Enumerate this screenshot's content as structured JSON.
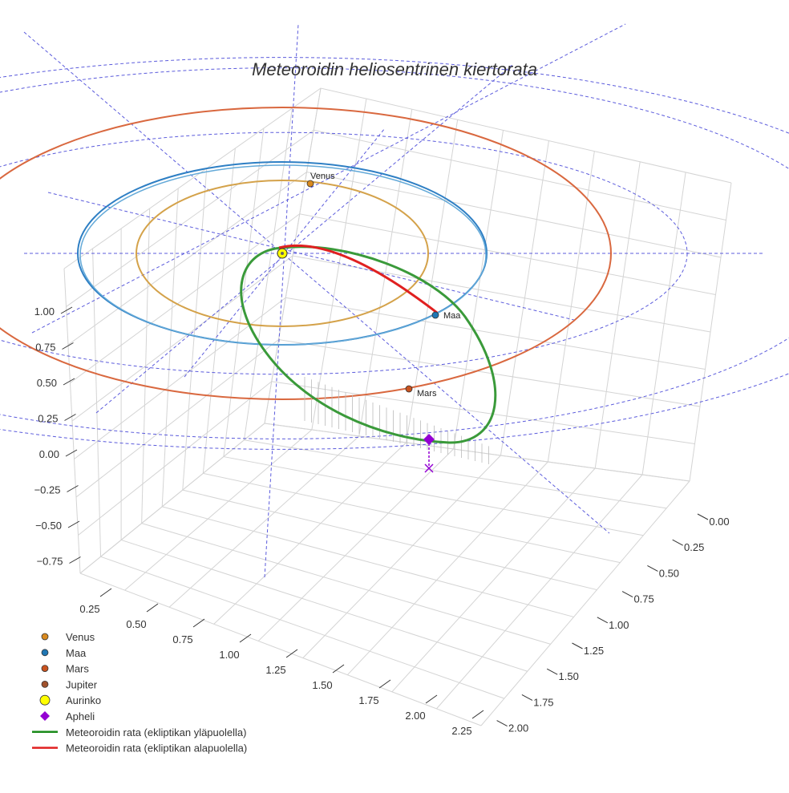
{
  "chart_data": {
    "type": "scatter",
    "title": "Meteoroidin heliosentrinen kiertorata",
    "projection": "3d",
    "axes": {
      "x": {
        "ticks": [
          "0.25",
          "0.50",
          "0.75",
          "1.00",
          "1.25",
          "1.50",
          "1.75",
          "2.00",
          "2.25"
        ],
        "label": ""
      },
      "y": {
        "ticks": [
          "0.00",
          "0.25",
          "0.50",
          "0.75",
          "1.00",
          "1.25",
          "1.50",
          "1.75",
          "2.00"
        ],
        "label": ""
      },
      "z": {
        "ticks": [
          "1.00",
          "0.75",
          "0.50",
          "0.25",
          "0.00",
          "−0.25",
          "−0.50",
          "−0.75"
        ],
        "label": ""
      }
    },
    "grid": true,
    "legend_position": "bottom-left",
    "orbits": [
      {
        "name": "Venus",
        "radius_au": 0.72,
        "color": "#d4a24a"
      },
      {
        "name": "Maa",
        "radius_au": 1.0,
        "color": "#2e7fc4"
      },
      {
        "name": "Mars",
        "radius_au": 1.52,
        "color": "#d9683f"
      }
    ],
    "markers": [
      {
        "name": "Venus",
        "label": "Venus",
        "color": "#d98a1f"
      },
      {
        "name": "Maa",
        "label": "Maa",
        "color": "#1f77b4"
      },
      {
        "name": "Mars",
        "label": "Mars",
        "color": "#c9531f"
      },
      {
        "name": "Aurinko",
        "label": "",
        "color": "#ffff00"
      },
      {
        "name": "Apheli",
        "label": "",
        "color": "#9400d3"
      }
    ],
    "meteoroid_track": [
      {
        "name": "Meteoroidin rata (ekliptikan yläpuolella)",
        "color": "#3a9a3a"
      },
      {
        "name": "Meteoroidin rata (ekliptikan alapuolella)",
        "color": "#e02020"
      }
    ],
    "legend": [
      {
        "label": "Venus",
        "symbol": "circle",
        "color": "#d98a1f"
      },
      {
        "label": "Maa",
        "symbol": "circle",
        "color": "#1f77b4"
      },
      {
        "label": "Mars",
        "symbol": "circle",
        "color": "#c9531f"
      },
      {
        "label": "Jupiter",
        "symbol": "circle",
        "color": "#a0522d"
      },
      {
        "label": "Aurinko",
        "symbol": "circle-large",
        "color": "#ffff00"
      },
      {
        "label": "Apheli",
        "symbol": "diamond",
        "color": "#9400d3"
      },
      {
        "label": "Meteoroidin rata (ekliptikan yläpuolella)",
        "symbol": "line",
        "color": "#1a8a1a"
      },
      {
        "label": "Meteoroidin rata (ekliptikan alapuolella)",
        "symbol": "line",
        "color": "#e02020"
      }
    ]
  }
}
